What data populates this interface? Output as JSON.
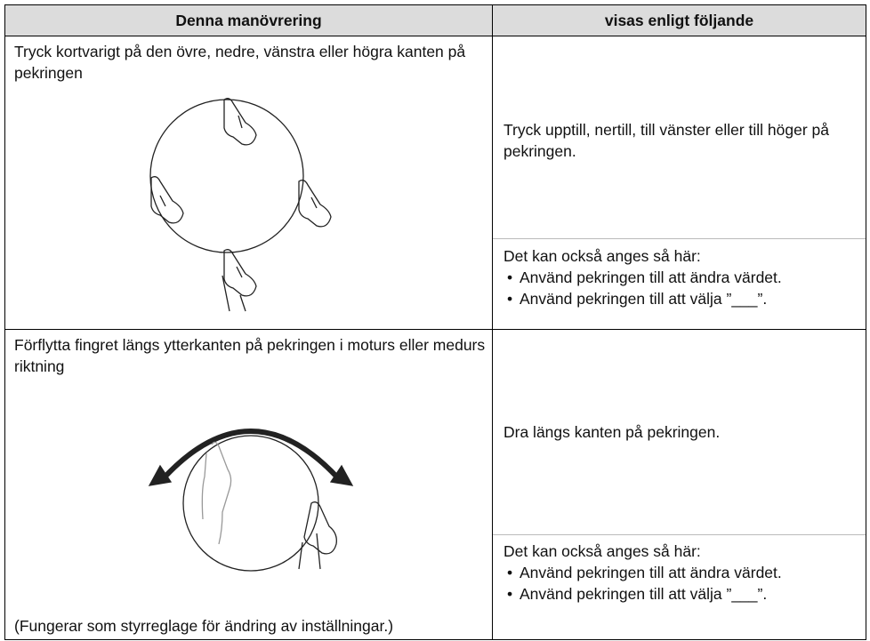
{
  "header": {
    "col1": "Denna manövrering",
    "col2": "visas enligt följande"
  },
  "rows": [
    {
      "operation": "Tryck kortvarigt på den övre, nedre, vänstra eller högra kanten på pekringen",
      "description": "Tryck upptill, nertill, till vänster eller till höger på pekringen.",
      "alternative": {
        "intro": "Det kan också anges så här:",
        "items": [
          "Använd pekringen till att ändra värdet.",
          "Använd pekringen till att välja ”___”."
        ]
      }
    },
    {
      "operation": "Förflytta fingret längs ytterkanten på pekringen i moturs eller medurs riktning",
      "description": "Dra längs kanten på pekringen.",
      "alternative": {
        "intro": "Det kan också anges så här:",
        "items": [
          "Använd pekringen till att ändra värdet.",
          "Använd pekringen till att välja ”___”."
        ]
      },
      "caption": "(Fungerar som styrreglage för ändring av inställningar.)"
    }
  ]
}
